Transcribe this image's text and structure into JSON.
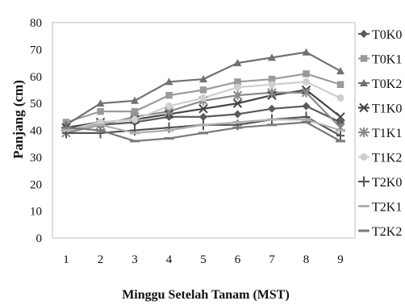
{
  "chart_data": {
    "type": "line",
    "xlabel": "Minggu Setelah Tanam (MST)",
    "ylabel": "Panjang (cm)",
    "categories": [
      "1",
      "2",
      "3",
      "4",
      "5",
      "6",
      "7",
      "8",
      "9"
    ],
    "ylim": [
      0,
      80
    ],
    "yticks": [
      "0",
      "10",
      "20",
      "30",
      "40",
      "50",
      "60",
      "70",
      "80"
    ],
    "grid": false,
    "legend_position": "right",
    "series": [
      {
        "name": "T0K0",
        "marker": "diamond",
        "color": "#5a5a5a",
        "values": [
          41,
          42,
          43,
          45,
          45,
          46,
          48,
          49,
          43
        ]
      },
      {
        "name": "T0K1",
        "marker": "square",
        "color": "#9a9a9a",
        "values": [
          43,
          47,
          47,
          53,
          55,
          58,
          59,
          61,
          57
        ]
      },
      {
        "name": "T0K2",
        "marker": "triangle",
        "color": "#707070",
        "values": [
          42,
          50,
          51,
          58,
          59,
          65,
          67,
          69,
          62
        ]
      },
      {
        "name": "T1K0",
        "marker": "x",
        "color": "#444444",
        "values": [
          41,
          43,
          44,
          46,
          48,
          50,
          53,
          55,
          45
        ]
      },
      {
        "name": "T1K1",
        "marker": "star",
        "color": "#8a8a8a",
        "values": [
          39,
          42,
          45,
          47,
          51,
          53,
          54,
          54,
          41
        ]
      },
      {
        "name": "T1K2",
        "marker": "circle",
        "color": "#cfcfcf",
        "values": [
          40,
          43,
          44,
          49,
          52,
          56,
          57,
          58,
          52
        ]
      },
      {
        "name": "T2K0",
        "marker": "plus",
        "color": "#555555",
        "values": [
          39,
          39,
          40,
          41,
          42,
          42,
          44,
          45,
          38
        ]
      },
      {
        "name": "T2K1",
        "marker": "dash",
        "color": "#b0b0b0",
        "values": [
          40,
          42,
          39,
          40,
          42,
          43,
          44,
          44,
          40
        ]
      },
      {
        "name": "T2K2",
        "marker": "dash",
        "color": "#7a7a7a",
        "values": [
          41,
          40,
          36,
          37,
          39,
          41,
          42,
          43,
          36
        ]
      }
    ]
  }
}
